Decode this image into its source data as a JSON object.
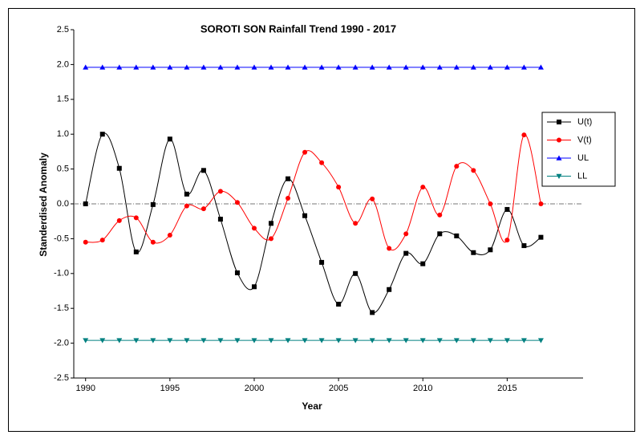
{
  "chart_data": {
    "type": "line",
    "title": "SOROTI SON Rainfall Trend 1990 - 2017",
    "x_label": "Year",
    "y_label": "Standerdised Anomaly",
    "x": [
      1990,
      1991,
      1992,
      1993,
      1994,
      1995,
      1996,
      1997,
      1998,
      1999,
      2000,
      2001,
      2002,
      2003,
      2004,
      2005,
      2006,
      2007,
      2008,
      2009,
      2010,
      2011,
      2012,
      2013,
      2014,
      2015,
      2016,
      2017
    ],
    "series": [
      {
        "name": "U(t)",
        "color": "#000000",
        "marker": "square",
        "smooth": true,
        "values": [
          0,
          1.0,
          0.51,
          -0.69,
          -0.01,
          0.93,
          0.14,
          0.48,
          -0.22,
          -0.99,
          -1.19,
          -0.28,
          0.36,
          -0.17,
          -0.84,
          -1.44,
          -1.0,
          -1.56,
          -1.23,
          -0.71,
          -0.86,
          -0.43,
          -0.46,
          -0.7,
          -0.66,
          -0.08,
          -0.6,
          -0.48
        ]
      },
      {
        "name": "V(t)",
        "color": "#ff0000",
        "marker": "circle",
        "smooth": true,
        "values": [
          -0.55,
          -0.52,
          -0.24,
          -0.2,
          -0.55,
          -0.45,
          -0.03,
          -0.07,
          0.18,
          0.02,
          -0.35,
          -0.5,
          0.08,
          0.74,
          0.59,
          0.24,
          -0.28,
          0.07,
          -0.64,
          -0.43,
          0.24,
          -0.16,
          0.54,
          0.48,
          0,
          -0.52,
          0.99,
          0
        ]
      },
      {
        "name": "UL",
        "color": "#0000ff",
        "marker": "triangle-up",
        "smooth": false,
        "values": [
          1.96,
          1.96,
          1.96,
          1.96,
          1.96,
          1.96,
          1.96,
          1.96,
          1.96,
          1.96,
          1.96,
          1.96,
          1.96,
          1.96,
          1.96,
          1.96,
          1.96,
          1.96,
          1.96,
          1.96,
          1.96,
          1.96,
          1.96,
          1.96,
          1.96,
          1.96,
          1.96,
          1.96
        ]
      },
      {
        "name": "LL",
        "color": "#008080",
        "marker": "triangle-down",
        "smooth": false,
        "values": [
          -1.96,
          -1.96,
          -1.96,
          -1.96,
          -1.96,
          -1.96,
          -1.96,
          -1.96,
          -1.96,
          -1.96,
          -1.96,
          -1.96,
          -1.96,
          -1.96,
          -1.96,
          -1.96,
          -1.96,
          -1.96,
          -1.96,
          -1.96,
          -1.96,
          -1.96,
          -1.96,
          -1.96,
          -1.96,
          -1.96,
          -1.96,
          -1.96
        ]
      }
    ],
    "xlim": [
      1989.3,
      2019.5
    ],
    "xticks": [
      1990,
      1995,
      2000,
      2005,
      2010,
      2015
    ],
    "ylim": [
      -2.5,
      2.5
    ],
    "yticks": [
      -2.5,
      {
        "value": -2,
        "label": "-2.0"
      },
      -1.5,
      {
        "value": -1,
        "label": "-1.0"
      },
      -0.5,
      {
        "value": 0,
        "label": "0.0"
      },
      0.5,
      {
        "value": 1,
        "label": "1.0"
      },
      1.5,
      {
        "value": 2,
        "label": "2.0"
      },
      2.5
    ],
    "zero_line": true,
    "legend": "upper right"
  }
}
